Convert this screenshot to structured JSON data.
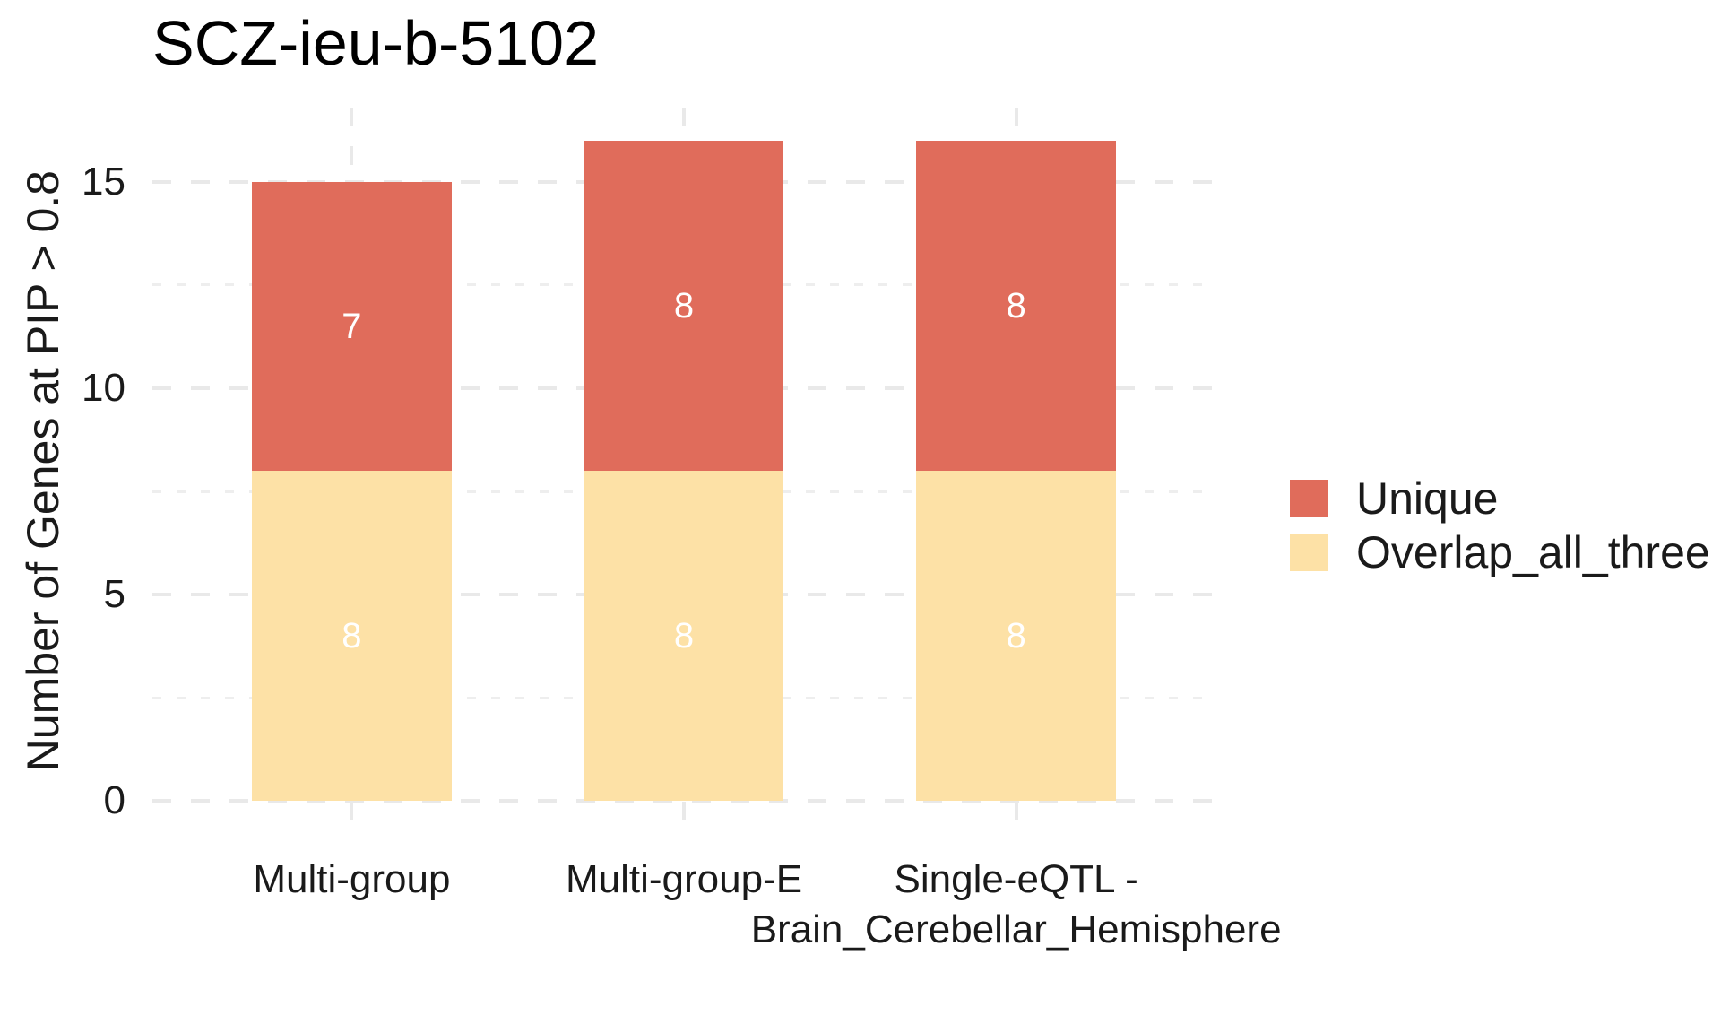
{
  "chart_data": {
    "type": "bar",
    "stacked": true,
    "title": "SCZ-ieu-b-5102",
    "xlabel": "",
    "ylabel": "Number of Genes at PIP > 0.8",
    "categories": [
      "Multi-group",
      "Multi-group-E",
      "Single-eQTL -\nBrain_Cerebellar_Hemisphere"
    ],
    "series": [
      {
        "name": "Overlap_all_three",
        "color": "#FDE1A6",
        "values": [
          8,
          8,
          8
        ]
      },
      {
        "name": "Unique",
        "color": "#E06C5B",
        "values": [
          7,
          8,
          8
        ]
      }
    ],
    "bar_label_color": "#FFFFFF",
    "y_ticks": [
      0,
      5,
      10,
      15
    ],
    "y_minor_ticks": [
      2.5,
      7.5,
      12.5
    ],
    "ylim": [
      -0.8,
      16.8
    ],
    "grid": {
      "style": "dashed",
      "major_color": "#E9E9E9",
      "minor_color": "#EEEEEE"
    },
    "legend": {
      "position": "right",
      "entries": [
        {
          "label": "Unique",
          "color": "#E06C5B"
        },
        {
          "label": "Overlap_all_three",
          "color": "#FDE1A6"
        }
      ]
    }
  }
}
